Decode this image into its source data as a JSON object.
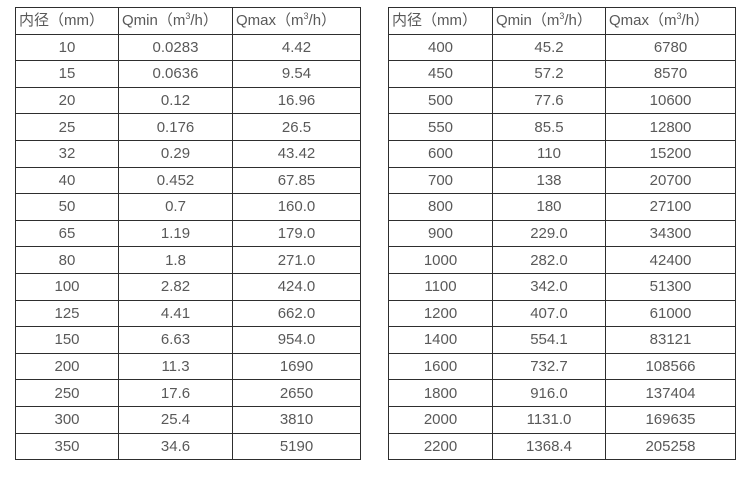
{
  "colors": {
    "border": "#2e2e2e",
    "text": "#595959",
    "background": "#ffffff"
  },
  "tables": [
    {
      "title": "flow-table-small-diameters",
      "columns": [
        {
          "label": "内径（mm）"
        },
        {
          "pre": "Qmin（m",
          "sup": "3",
          "post": "/h）"
        },
        {
          "pre": "Qmax（m",
          "sup": "3",
          "post": "/h）"
        }
      ],
      "rows": [
        [
          "10",
          "0.0283",
          "4.42"
        ],
        [
          "15",
          "0.0636",
          "9.54"
        ],
        [
          "20",
          "0.12",
          "16.96"
        ],
        [
          "25",
          "0.176",
          "26.5"
        ],
        [
          "32",
          "0.29",
          "43.42"
        ],
        [
          "40",
          "0.452",
          "67.85"
        ],
        [
          "50",
          "0.7",
          "160.0"
        ],
        [
          "65",
          "1.19",
          "179.0"
        ],
        [
          "80",
          "1.8",
          "271.0"
        ],
        [
          "100",
          "2.82",
          "424.0"
        ],
        [
          "125",
          "4.41",
          "662.0"
        ],
        [
          "150",
          "6.63",
          "954.0"
        ],
        [
          "200",
          "11.3",
          "1690"
        ],
        [
          "250",
          "17.6",
          "2650"
        ],
        [
          "300",
          "25.4",
          "3810"
        ],
        [
          "350",
          "34.6",
          "5190"
        ]
      ]
    },
    {
      "title": "flow-table-large-diameters",
      "columns": [
        {
          "label": "内径（mm）"
        },
        {
          "pre": "Qmin（m",
          "sup": "3",
          "post": "/h）"
        },
        {
          "pre": "Qmax（m",
          "sup": "3",
          "post": "/h）"
        }
      ],
      "rows": [
        [
          "400",
          "45.2",
          "6780"
        ],
        [
          "450",
          "57.2",
          "8570"
        ],
        [
          "500",
          "77.6",
          "10600"
        ],
        [
          "550",
          "85.5",
          "12800"
        ],
        [
          "600",
          "110",
          "15200"
        ],
        [
          "700",
          "138",
          "20700"
        ],
        [
          "800",
          "180",
          "27100"
        ],
        [
          "900",
          "229.0",
          "34300"
        ],
        [
          "1000",
          "282.0",
          "42400"
        ],
        [
          "1100",
          "342.0",
          "51300"
        ],
        [
          "1200",
          "407.0",
          "61000"
        ],
        [
          "1400",
          "554.1",
          "83121"
        ],
        [
          "1600",
          "732.7",
          "108566"
        ],
        [
          "1800",
          "916.0",
          "137404"
        ],
        [
          "2000",
          "1131.0",
          "169635"
        ],
        [
          "2200",
          "1368.4",
          "205258"
        ]
      ]
    }
  ]
}
